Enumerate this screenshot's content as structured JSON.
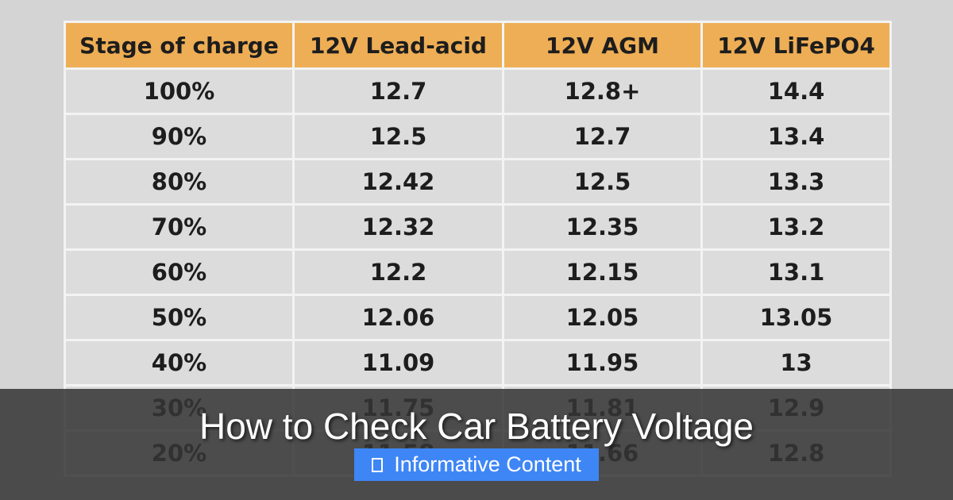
{
  "chart_data": {
    "type": "table",
    "columns": [
      "Stage of charge",
      "12V Lead-acid",
      "12V AGM",
      "12V LiFePO4"
    ],
    "rows": [
      [
        "100%",
        "12.7",
        "12.8+",
        "14.4"
      ],
      [
        "90%",
        "12.5",
        "12.7",
        "13.4"
      ],
      [
        "80%",
        "12.42",
        "12.5",
        "13.3"
      ],
      [
        "70%",
        "12.32",
        "12.35",
        "13.2"
      ],
      [
        "60%",
        "12.2",
        "12.15",
        "13.1"
      ],
      [
        "50%",
        "12.06",
        "12.05",
        "13.05"
      ],
      [
        "40%",
        "11.09",
        "11.95",
        "13"
      ],
      [
        "30%",
        "11.75",
        "11.81",
        "12.9"
      ],
      [
        "20%",
        "11.58",
        "11.66",
        "12.8"
      ]
    ]
  },
  "overlay": {
    "title": "How to Check Car Battery Voltage",
    "badge_label": "Informative Content",
    "badge_icon": "document-icon"
  },
  "colors": {
    "header_bg": "#eeae55",
    "cell_bg": "#dcdcdc",
    "grid_line": "#f3f3f3",
    "overlay_bg": "#343434",
    "badge_bg": "#3e86f5"
  }
}
